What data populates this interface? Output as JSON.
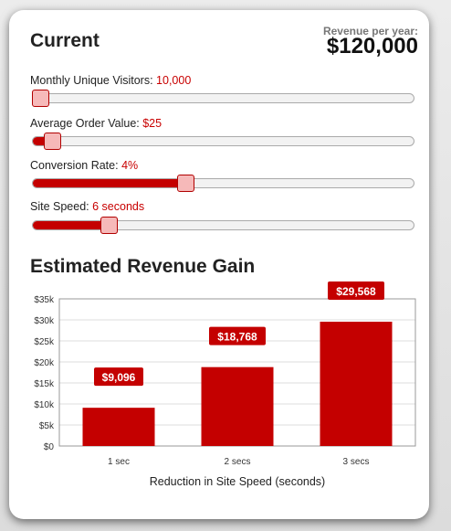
{
  "current": {
    "title": "Current",
    "revenue_label": "Revenue per year:",
    "revenue_value": "$120,000"
  },
  "sliders": [
    {
      "label": "Monthly Unique Visitors:",
      "value": "10,000",
      "level": 0.0
    },
    {
      "label": "Average Order Value:",
      "value": "$25",
      "level": 0.05
    },
    {
      "label": "Conversion Rate:",
      "value": "4%",
      "level": 0.4
    },
    {
      "label": "Site Speed:",
      "value": "6 seconds",
      "level": 0.2
    }
  ],
  "gain": {
    "title": "Estimated Revenue Gain"
  },
  "colors": {
    "accent": "#c40000",
    "thumb": "#f6b9b9"
  },
  "chart_data": {
    "type": "bar",
    "categories": [
      "1 sec",
      "2 secs",
      "3 secs"
    ],
    "values": [
      9096,
      18768,
      29568
    ],
    "value_labels": [
      "$9,096",
      "$18,768",
      "$29,568"
    ],
    "yticks": [
      "$0",
      "$5k",
      "$10k",
      "$15k",
      "$20k",
      "$25k",
      "$30k",
      "$35k"
    ],
    "ylim": [
      0,
      35000
    ],
    "xlabel": "Reduction in Site Speed (seconds)",
    "grid": true
  }
}
